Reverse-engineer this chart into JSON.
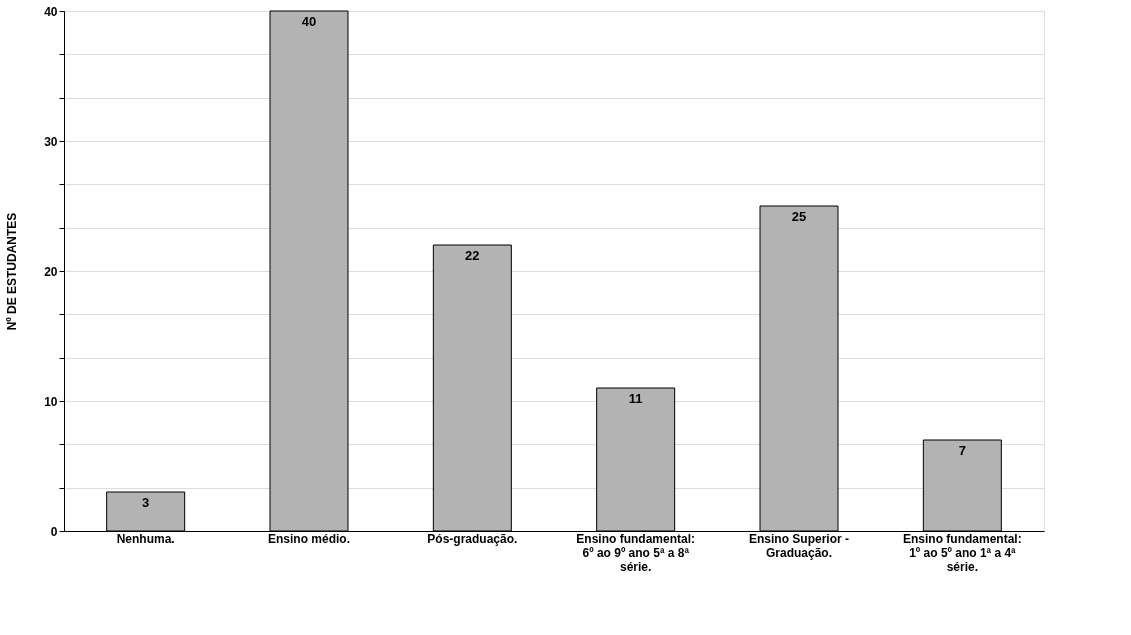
{
  "chart_data": {
    "type": "bar",
    "ylabel": "Nº DE ESTUDANTES",
    "categories": [
      "Nenhuma.",
      "Ensino médio.",
      "Pós-graduação.",
      "Ensino fundamental: 6º ao 9º ano 5ª a 8ª série.",
      "Ensino Superior - Graduação.",
      "Ensino fundamental: 1º ao 5º ano 1ª a 4ª série."
    ],
    "values": [
      3,
      40,
      22,
      11,
      25,
      7
    ],
    "color": "#b3b3b3",
    "data_labels": true,
    "ylim": [
      0,
      40
    ],
    "yticks": [
      0,
      {
        "value": 3.333,
        "label": null
      },
      {
        "value": 6.667,
        "label": null
      },
      10,
      {
        "value": 13.333,
        "label": null
      },
      {
        "value": 16.667,
        "label": null
      },
      20,
      {
        "value": 23.333,
        "label": null
      },
      {
        "value": 26.667,
        "label": null
      },
      30,
      {
        "value": 33.333,
        "label": null
      },
      {
        "value": 36.667,
        "label": null
      },
      40
    ],
    "grid": "y"
  }
}
